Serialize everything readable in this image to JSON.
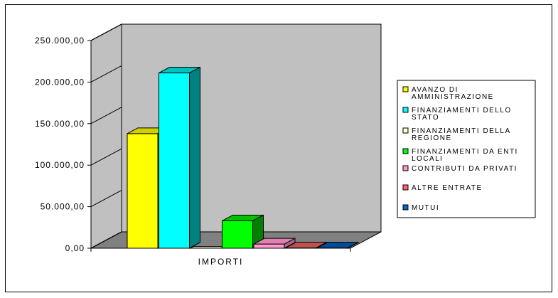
{
  "chart_data": {
    "type": "bar",
    "categories": [
      "IMPORTI"
    ],
    "series": [
      {
        "name": "AVANZO DI AMMINISTRAZIONE",
        "legend_lines": [
          "AVANZO DI",
          "AMMINISTRAZIONE"
        ],
        "values": [
          138000
        ],
        "color": "#ffff00",
        "side": "#a8a800",
        "top": "#d0d000"
      },
      {
        "name": "FINANZIAMENTI DELLO STATO",
        "legend_lines": [
          "FINANZIAMENTI DELLO",
          "STATO"
        ],
        "values": [
          211000
        ],
        "color": "#00ffff",
        "side": "#008080",
        "top": "#00c0c0"
      },
      {
        "name": "FINANZIAMENTI DELLA REGIONE",
        "legend_lines": [
          "FINANZIAMENTI DELLA",
          "REGIONE"
        ],
        "values": [
          0
        ],
        "color": "#ffffcc",
        "side": "#a8a888",
        "top": "#e6e6b8"
      },
      {
        "name": "FINANZIAMENTI DA ENTI LOCALI",
        "legend_lines": [
          "FINANZIAMENTI DA ENTI",
          "LOCALI"
        ],
        "values": [
          33000
        ],
        "color": "#00ff00",
        "side": "#008000",
        "top": "#00c000"
      },
      {
        "name": "CONTRIBUTI DA PRIVATI",
        "legend_lines": [
          "CONTRIBUTI DA PRIVATI"
        ],
        "values": [
          5000
        ],
        "color": "#ff99cc",
        "side": "#a86688",
        "top": "#e080b0"
      },
      {
        "name": "ALTRE ENTRATE",
        "legend_lines": [
          "ALTRE ENTRATE"
        ],
        "values": [
          300
        ],
        "color": "#ff6666",
        "side": "#a84444",
        "top": "#c05050"
      },
      {
        "name": "MUTUI",
        "legend_lines": [
          "MUTUI"
        ],
        "values": [
          300
        ],
        "color": "#0066cc",
        "side": "#003366",
        "top": "#004c99"
      }
    ],
    "yticks": [
      "0,00",
      "50.000,00",
      "100.000,00",
      "150.000,00",
      "200.000,00",
      "250.000,00"
    ],
    "ylim": [
      0,
      250000
    ],
    "xlabel": "IMPORTI",
    "legend_position": "right",
    "grid": false,
    "colors": {
      "wall": "#c0c0c0",
      "floor": "#808080"
    }
  }
}
